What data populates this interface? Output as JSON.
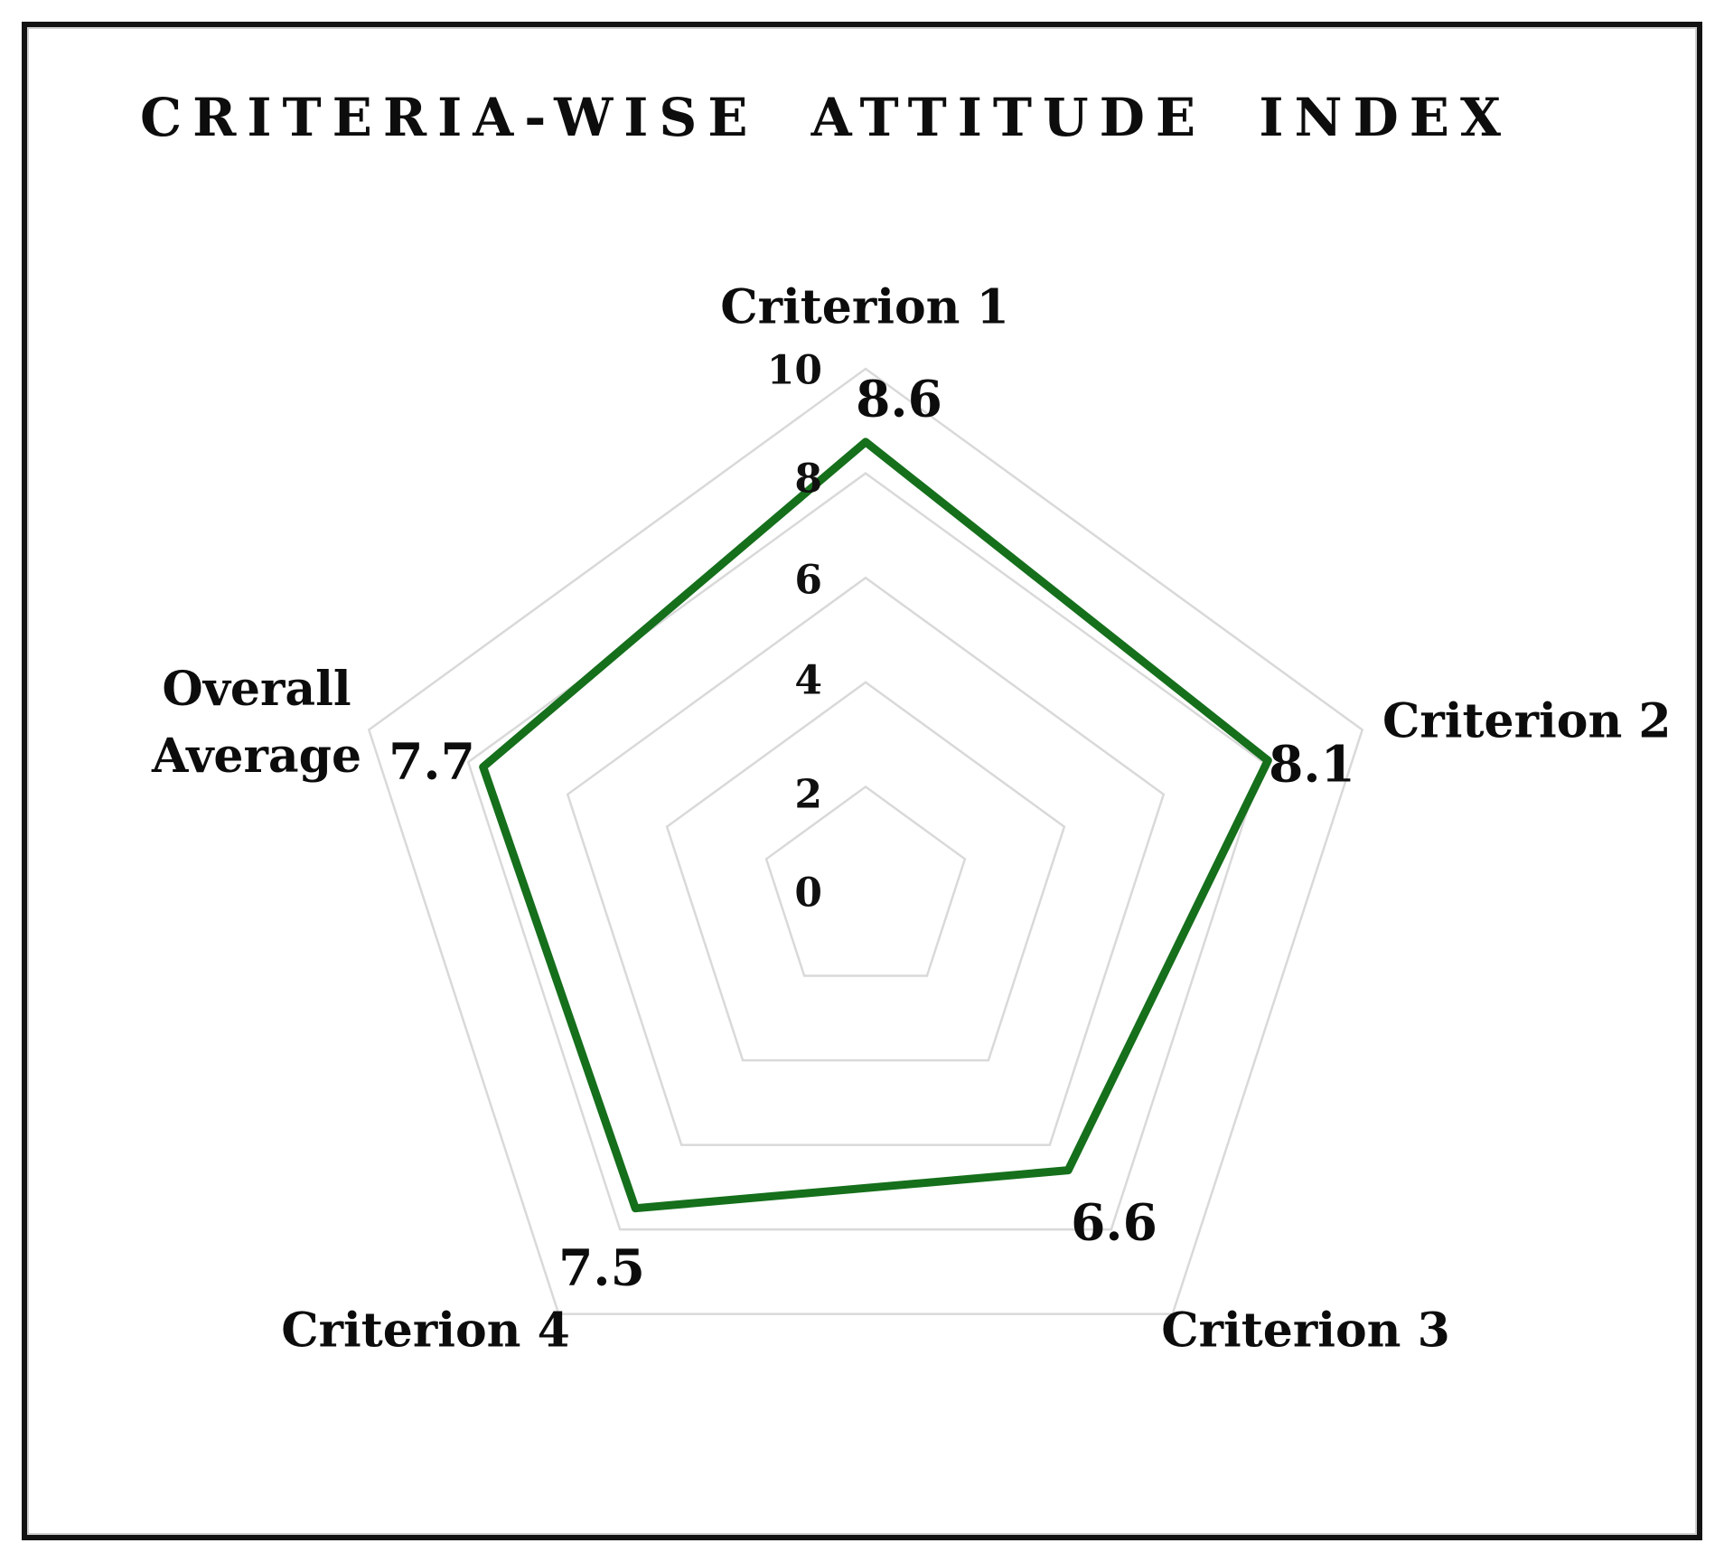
{
  "chart_data": {
    "type": "radar",
    "title": "CRITERIA-WISE ATTITUDE INDEX",
    "categories": [
      "Criterion 1",
      "Criterion 2",
      "Criterion 3",
      "Criterion 4",
      "Overall Average"
    ],
    "values": [
      8.6,
      8.1,
      6.6,
      7.5,
      7.7
    ],
    "ticks": [
      10,
      8,
      6,
      4,
      2,
      0
    ],
    "ylim": [
      0,
      10
    ],
    "grid": true,
    "legend": "none",
    "line_color": "#156f1b",
    "grid_color": "#d9d9d9",
    "text_color": "#0c0c0c",
    "background_color": "#ffffff",
    "border_color": "#121212"
  }
}
